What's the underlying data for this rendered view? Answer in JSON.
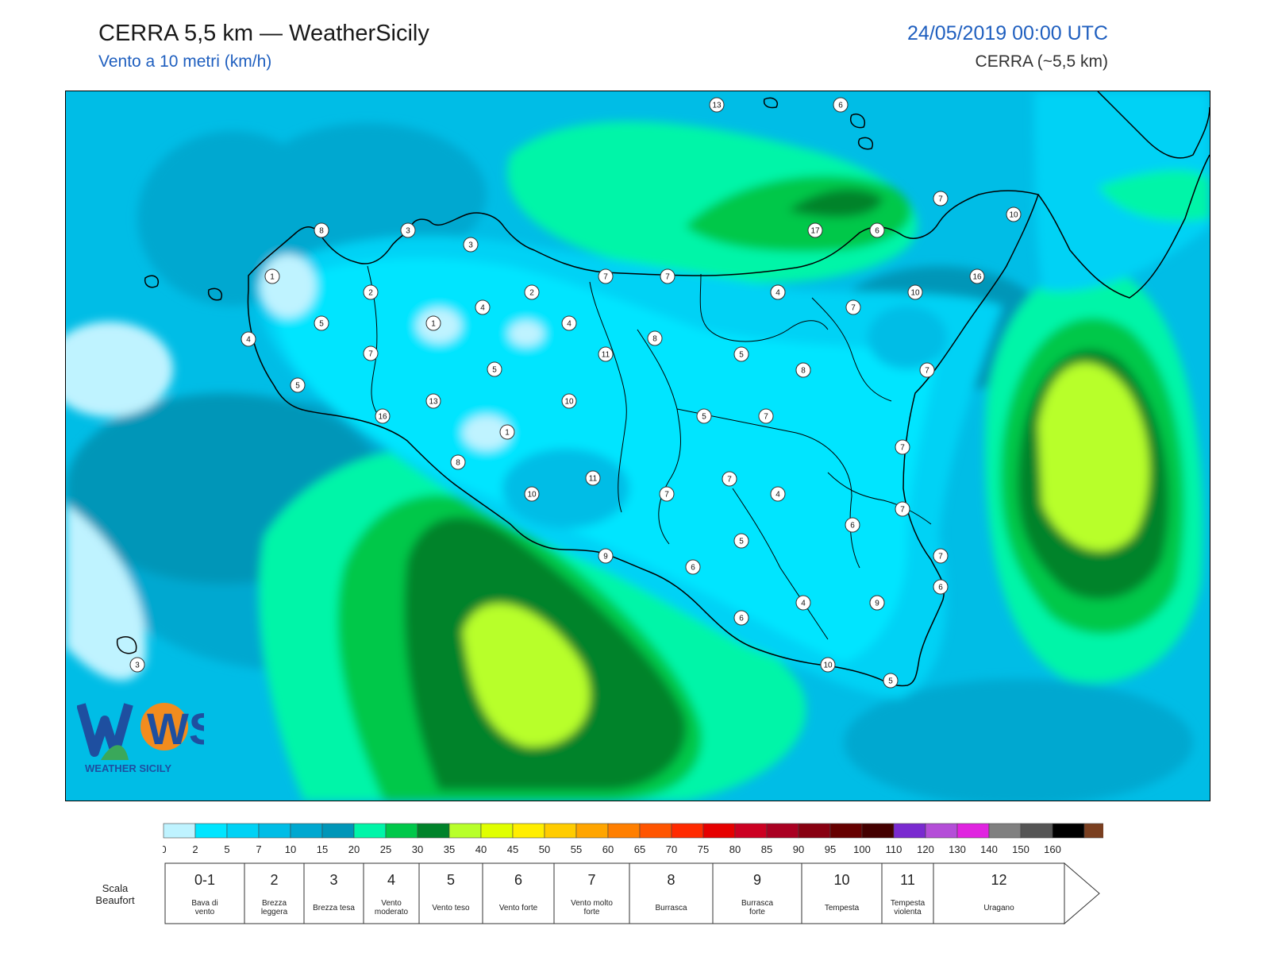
{
  "header": {
    "title": "CERRA 5,5 km — WeatherSicily",
    "subtitle": "Vento a 10 metri (km/h)",
    "date": "24/05/2019 00:00 UTC",
    "model": "CERRA (~5,5 km)"
  },
  "logo": {
    "mark": "WS",
    "text": "WEATHER SICILY"
  },
  "colors": {
    "c0": "#bff3ff",
    "c1": "#00e5ff",
    "c2": "#00d2f5",
    "c3": "#00bde6",
    "c4": "#00a8d0",
    "c5": "#0096b8",
    "c6": "#00f5a8",
    "c7": "#00c84a",
    "c8": "#00832a",
    "c9": "#b8ff2a",
    "coast": "#000000"
  },
  "station_values": [
    13,
    6,
    7,
    10,
    17,
    6,
    16,
    8,
    3,
    3,
    1,
    2,
    2,
    4,
    1,
    4,
    5,
    7,
    7,
    5,
    4,
    10,
    7,
    4,
    7,
    5,
    8,
    11,
    5,
    13,
    16,
    10,
    1,
    8,
    5,
    5,
    7,
    7,
    6,
    8,
    6,
    4,
    7,
    10,
    11,
    7,
    7,
    4,
    7,
    5,
    6,
    6,
    7,
    9,
    6,
    4,
    9,
    10,
    5,
    3
  ],
  "colorbar": {
    "ticks": [
      "0",
      "2",
      "5",
      "7",
      "10",
      "15",
      "20",
      "25",
      "30",
      "35",
      "40",
      "45",
      "50",
      "55",
      "60",
      "65",
      "70",
      "75",
      "80",
      "85",
      "90",
      "95",
      "100",
      "110",
      "120",
      "130",
      "140",
      "150",
      "160"
    ],
    "colors": [
      "#bff3ff",
      "#00e5ff",
      "#00d2f5",
      "#00bde6",
      "#00a8d0",
      "#0096b8",
      "#00f5a8",
      "#00c84a",
      "#00832a",
      "#b8ff2a",
      "#e0ff00",
      "#ffee00",
      "#ffcc00",
      "#ffa500",
      "#ff7f00",
      "#ff5500",
      "#ff2a00",
      "#e60000",
      "#cc0022",
      "#aa0022",
      "#880011",
      "#660000",
      "#440000",
      "#7a2ad0",
      "#b44ed8",
      "#e024e0",
      "#808080",
      "#555555",
      "#000000",
      "#7a3f20",
      "#c98040"
    ]
  },
  "beaufort": {
    "title": "Scala Beaufort",
    "levels": [
      {
        "num": "0-1",
        "desc": "Bava di vento"
      },
      {
        "num": "2",
        "desc": "Brezza leggera"
      },
      {
        "num": "3",
        "desc": "Brezza tesa"
      },
      {
        "num": "4",
        "desc": "Vento moderato"
      },
      {
        "num": "5",
        "desc": "Vento teso"
      },
      {
        "num": "6",
        "desc": "Vento forte"
      },
      {
        "num": "7",
        "desc": "Vento molto forte"
      },
      {
        "num": "8",
        "desc": "Burrasca"
      },
      {
        "num": "9",
        "desc": "Burrasca forte"
      },
      {
        "num": "10",
        "desc": "Tempesta"
      },
      {
        "num": "11",
        "desc": "Tempesta violenta"
      },
      {
        "num": "12",
        "desc": "Uragano"
      }
    ]
  }
}
